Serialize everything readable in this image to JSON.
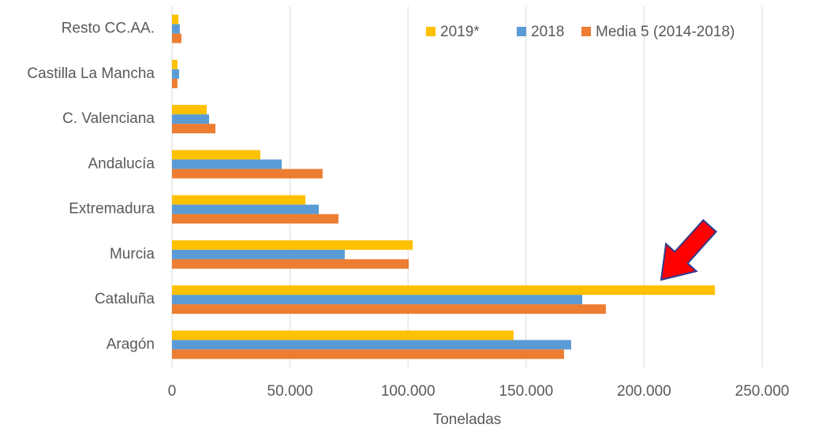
{
  "chart_data": {
    "type": "bar",
    "orientation": "horizontal",
    "categories": [
      "Resto CC.AA.",
      "Castilla La Mancha",
      "C. Valenciana",
      "Andalucía",
      "Extremadura",
      "Murcia",
      "Cataluña",
      "Aragón"
    ],
    "series": [
      {
        "name": "2019*",
        "color": "#ffc000",
        "values": [
          2700,
          2300,
          14700,
          37400,
          56500,
          102000,
          230000,
          144700
        ]
      },
      {
        "name": "2018",
        "color": "#5b9bd5",
        "values": [
          3300,
          3000,
          15700,
          46500,
          62200,
          73200,
          173800,
          169100
        ]
      },
      {
        "name": "Media 5 (2014-2018)",
        "color": "#ed7d31",
        "values": [
          4000,
          2300,
          18400,
          63800,
          70500,
          100300,
          183800,
          166100
        ]
      }
    ],
    "xlabel": "Toneladas",
    "xlim": [
      0,
      250000
    ],
    "xticks": [
      0,
      {
        "value": 50000,
        "label": "50.000"
      },
      {
        "value": 100000,
        "label": "100.000"
      },
      {
        "value": 150000,
        "label": "150.000"
      },
      {
        "value": 200000,
        "label": "200.000"
      },
      {
        "value": 250000,
        "label": "250.000"
      }
    ],
    "grid": true,
    "legend": "top-right"
  }
}
